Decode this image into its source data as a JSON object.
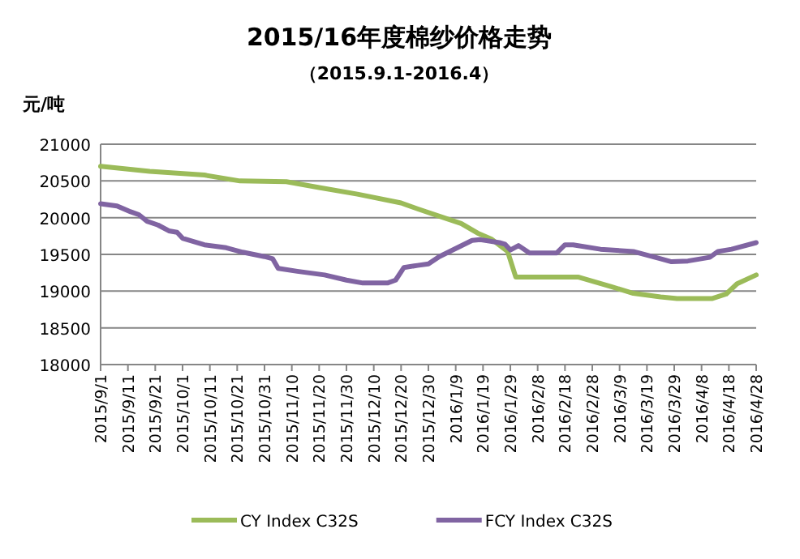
{
  "chart_data": {
    "type": "line",
    "title": "2015/16年度棉纱价格走势",
    "subtitle": "（2015.9.1-2016.4）",
    "ylabel": "元/吨",
    "xlim": [
      "2015-09-01",
      "2016-04-28"
    ],
    "xticks": [
      {
        "value": "2015-09-01",
        "label": "2015/9/1"
      },
      {
        "value": "2015-09-11",
        "label": "2015/9/11"
      },
      {
        "value": "2015-09-21",
        "label": "2015/9/21"
      },
      {
        "value": "2015-10-01",
        "label": "2015/10/1"
      },
      {
        "value": "2015-10-11",
        "label": "2015/10/11"
      },
      {
        "value": "2015-10-21",
        "label": "2015/10/21"
      },
      {
        "value": "2015-10-31",
        "label": "2015/10/31"
      },
      {
        "value": "2015-11-10",
        "label": "2015/11/10"
      },
      {
        "value": "2015-11-20",
        "label": "2015/11/20"
      },
      {
        "value": "2015-11-30",
        "label": "2015/11/30"
      },
      {
        "value": "2015-12-10",
        "label": "2015/12/10"
      },
      {
        "value": "2015-12-20",
        "label": "2015/12/20"
      },
      {
        "value": "2015-12-30",
        "label": "2015/12/30"
      },
      {
        "value": "2016-01-09",
        "label": "2016/1/9"
      },
      {
        "value": "2016-01-19",
        "label": "2016/1/19"
      },
      {
        "value": "2016-01-29",
        "label": "2016/1/29"
      },
      {
        "value": "2016-02-08",
        "label": "2016/2/8"
      },
      {
        "value": "2016-02-18",
        "label": "2016/2/18"
      },
      {
        "value": "2016-02-28",
        "label": "2016/2/28"
      },
      {
        "value": "2016-03-09",
        "label": "2016/3/9"
      },
      {
        "value": "2016-03-19",
        "label": "2016/3/19"
      },
      {
        "value": "2016-03-29",
        "label": "2016/3/29"
      },
      {
        "value": "2016-04-08",
        "label": "2016/4/8"
      },
      {
        "value": "2016-04-18",
        "label": "2016/4/18"
      },
      {
        "value": "2016-04-28",
        "label": "2016/4/28"
      }
    ],
    "ylim": [
      18000,
      21000
    ],
    "yticks": [
      18000,
      18500,
      19000,
      19500,
      20000,
      20500,
      21000
    ],
    "grid": "y",
    "legend": "bottom",
    "marker": "none",
    "line_style": "solid",
    "series": [
      {
        "name": "CY Index C32S",
        "color": "#9bbb59",
        "x": [
          "2015-09-01",
          "2015-09-19",
          "2015-10-09",
          "2015-10-22",
          "2015-11-08",
          "2015-11-20",
          "2015-12-04",
          "2015-12-20",
          "2015-12-26",
          "2016-01-03",
          "2016-01-11",
          "2016-01-17",
          "2016-01-22",
          "2016-01-28",
          "2016-01-31",
          "2016-02-23",
          "2016-03-06",
          "2016-03-14",
          "2016-03-24",
          "2016-03-30",
          "2016-04-12",
          "2016-04-17",
          "2016-04-21",
          "2016-04-28"
        ],
        "values": [
          20700,
          20630,
          20580,
          20500,
          20490,
          20410,
          20320,
          20200,
          20120,
          20020,
          19920,
          19790,
          19710,
          19540,
          19190,
          19190,
          19060,
          18970,
          18920,
          18900,
          18900,
          18960,
          19100,
          19220
        ]
      },
      {
        "name": "FCY Index C32S",
        "color": "#8064a2",
        "x": [
          "2015-09-01",
          "2015-09-07",
          "2015-09-12",
          "2015-09-15",
          "2015-09-18",
          "2015-09-22",
          "2015-09-26",
          "2015-09-29",
          "2015-10-01",
          "2015-10-09",
          "2015-10-17",
          "2015-10-23",
          "2015-10-31",
          "2015-11-03",
          "2015-11-05",
          "2015-11-12",
          "2015-11-22",
          "2015-11-30",
          "2015-12-06",
          "2015-12-15",
          "2015-12-18",
          "2015-12-21",
          "2015-12-26",
          "2015-12-30",
          "2016-01-03",
          "2016-01-09",
          "2016-01-15",
          "2016-01-18",
          "2016-01-25",
          "2016-01-27",
          "2016-01-29",
          "2016-02-01",
          "2016-02-05",
          "2016-02-15",
          "2016-02-18",
          "2016-02-21",
          "2016-03-02",
          "2016-03-14",
          "2016-03-24",
          "2016-03-28",
          "2016-04-03",
          "2016-04-11",
          "2016-04-14",
          "2016-04-19",
          "2016-04-28"
        ],
        "values": [
          20190,
          20160,
          20080,
          20040,
          19950,
          19900,
          19820,
          19800,
          19720,
          19630,
          19590,
          19530,
          19470,
          19440,
          19310,
          19270,
          19220,
          19150,
          19110,
          19110,
          19150,
          19320,
          19350,
          19370,
          19470,
          19580,
          19690,
          19700,
          19660,
          19640,
          19560,
          19620,
          19520,
          19520,
          19630,
          19630,
          19570,
          19540,
          19440,
          19400,
          19410,
          19460,
          19540,
          19570,
          19660
        ]
      }
    ]
  }
}
